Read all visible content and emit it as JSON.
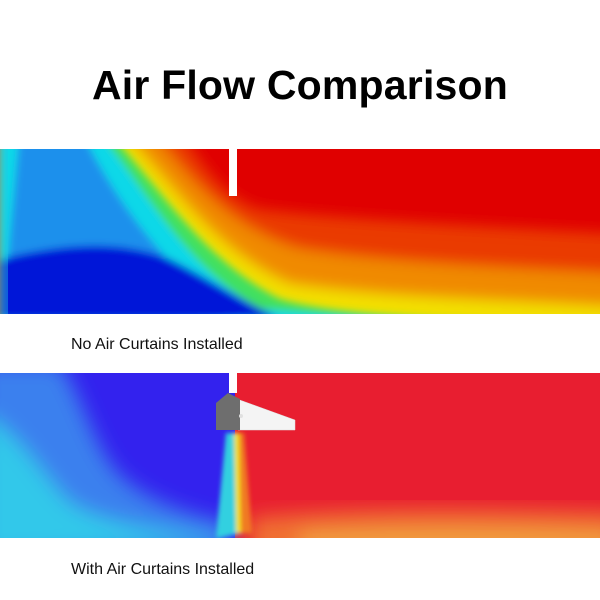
{
  "title": "Air Flow Comparison",
  "panels": [
    {
      "caption": "No Air Curtains Installed"
    },
    {
      "caption": "With Air Curtains Installed"
    }
  ],
  "colors": {
    "hot": "#e00000",
    "cold": "#0010d8",
    "curtain_cold": "#3322ee",
    "curtain_hot": "#e81e30"
  }
}
